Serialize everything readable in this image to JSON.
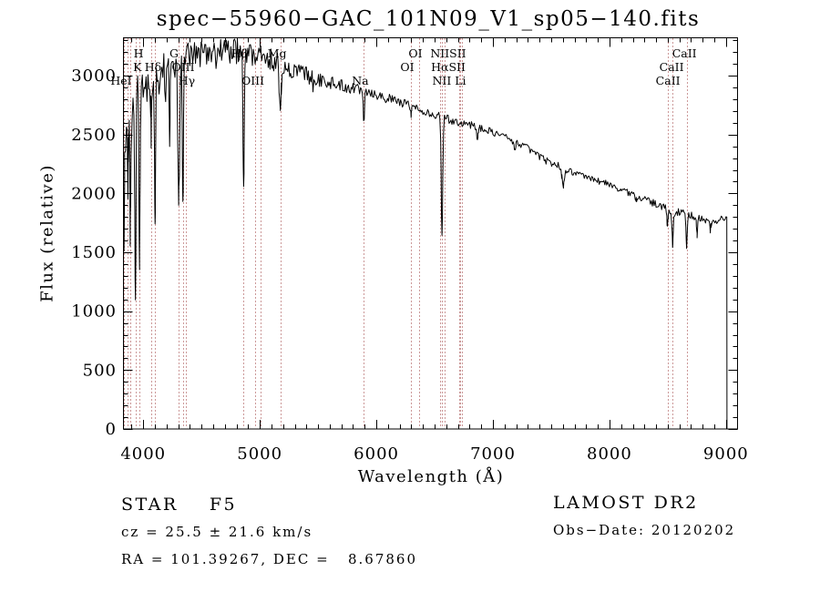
{
  "title": "spec−55960−GAC_101N09_V1_sp05−140.fits",
  "annotations": {
    "class_line": "STAR    F5",
    "cz_line": "cz = 25.5 ± 21.6 km/s",
    "radec_line": "RA = 101.39267, DEC =   8.67860",
    "survey": "LAMOST DR2",
    "obs_date": "Obs−Date: 20120202"
  },
  "colors": {
    "background": "#ffffff",
    "spectrum": "#000000",
    "axis": "#000000",
    "text": "#000000",
    "marker_line": "#993333"
  },
  "chart_data": {
    "type": "line",
    "title": "spec−55960−GAC_101N09_V1_sp05−140.fits",
    "xlabel": "Wavelength (Å)",
    "ylabel": "Flux (relative)",
    "xlim": [
      3830,
      9099
    ],
    "ylim": [
      0,
      3322
    ],
    "x_ticks": [
      4000,
      5000,
      6000,
      7000,
      8000,
      9000
    ],
    "x_minor_step": 100,
    "y_ticks": [
      0,
      500,
      1000,
      1500,
      2000,
      2500,
      3000
    ],
    "y_minor_step": 100,
    "grid": false,
    "legend": "none",
    "series_name": "spectrum",
    "noise_seed": 1234,
    "continuum_points": [
      [
        3830,
        2350
      ],
      [
        3860,
        2600
      ],
      [
        3900,
        2780
      ],
      [
        3950,
        2890
      ],
      [
        4000,
        2920
      ],
      [
        4100,
        3000
      ],
      [
        4200,
        3060
      ],
      [
        4300,
        3110
      ],
      [
        4450,
        3190
      ],
      [
        4600,
        3230
      ],
      [
        4750,
        3215
      ],
      [
        4900,
        3185
      ],
      [
        5000,
        3170
      ],
      [
        5100,
        3130
      ],
      [
        5250,
        3070
      ],
      [
        5400,
        3010
      ],
      [
        5550,
        2960
      ],
      [
        5700,
        2915
      ],
      [
        5900,
        2880
      ],
      [
        6100,
        2805
      ],
      [
        6300,
        2745
      ],
      [
        6450,
        2690
      ],
      [
        6550,
        2650
      ],
      [
        6650,
        2620
      ],
      [
        6800,
        2585
      ],
      [
        7000,
        2520
      ],
      [
        7150,
        2465
      ],
      [
        7300,
        2385
      ],
      [
        7450,
        2280
      ],
      [
        7600,
        2225
      ],
      [
        7750,
        2150
      ],
      [
        7900,
        2110
      ],
      [
        8050,
        2055
      ],
      [
        8200,
        1990
      ],
      [
        8350,
        1930
      ],
      [
        8450,
        1885
      ],
      [
        8550,
        1845
      ],
      [
        8650,
        1830
      ],
      [
        8750,
        1795
      ],
      [
        8850,
        1760
      ],
      [
        8950,
        1780
      ],
      [
        9000,
        1800
      ],
      [
        9005,
        1770
      ]
    ],
    "absorption_lines": [
      {
        "wavelength": 3835,
        "flux_min": 1650,
        "width": 4
      },
      {
        "wavelength": 3868,
        "flux_min": 1900,
        "width": 3
      },
      {
        "wavelength": 3889,
        "flux_min": 1680,
        "width": 4
      },
      {
        "wavelength": 3933,
        "flux_min": 1065,
        "width": 5
      },
      {
        "wavelength": 3968,
        "flux_min": 1430,
        "width": 5
      },
      {
        "wavelength": 4068,
        "flux_min": 2500,
        "width": 3
      },
      {
        "wavelength": 4101,
        "flux_min": 1700,
        "width": 4
      },
      {
        "wavelength": 4226,
        "flux_min": 2450,
        "width": 3
      },
      {
        "wavelength": 4305,
        "flux_min": 1990,
        "width": 8
      },
      {
        "wavelength": 4340,
        "flux_min": 1930,
        "width": 5
      },
      {
        "wavelength": 4861,
        "flux_min": 2005,
        "width": 5
      },
      {
        "wavelength": 5175,
        "flux_min": 2720,
        "width": 8
      },
      {
        "wavelength": 5893,
        "flux_min": 2620,
        "width": 5
      },
      {
        "wavelength": 6300,
        "flux_min": 2670,
        "width": 3
      },
      {
        "wavelength": 6563,
        "flux_min": 1650,
        "width": 6
      },
      {
        "wavelength": 6867,
        "flux_min": 2480,
        "width": 8
      },
      {
        "wavelength": 7186,
        "flux_min": 2380,
        "width": 9
      },
      {
        "wavelength": 7605,
        "flux_min": 2070,
        "width": 12
      },
      {
        "wavelength": 8227,
        "flux_min": 1940,
        "width": 5
      },
      {
        "wavelength": 8498,
        "flux_min": 1730,
        "width": 5
      },
      {
        "wavelength": 8542,
        "flux_min": 1565,
        "width": 5
      },
      {
        "wavelength": 8662,
        "flux_min": 1550,
        "width": 5
      },
      {
        "wavelength": 8752,
        "flux_min": 1650,
        "width": 5
      },
      {
        "wavelength": 8865,
        "flux_min": 1690,
        "width": 5
      }
    ],
    "noise_amplitude": [
      [
        3830,
        300
      ],
      [
        3880,
        260
      ],
      [
        3950,
        220
      ],
      [
        4050,
        160
      ],
      [
        4250,
        140
      ],
      [
        4500,
        120
      ],
      [
        4800,
        110
      ],
      [
        5100,
        95
      ],
      [
        5400,
        70
      ],
      [
        5700,
        55
      ],
      [
        6000,
        45
      ],
      [
        6400,
        38
      ],
      [
        6800,
        32
      ],
      [
        7200,
        28
      ],
      [
        7600,
        30
      ],
      [
        8000,
        28
      ],
      [
        8300,
        30
      ],
      [
        8600,
        33
      ],
      [
        8900,
        30
      ],
      [
        9005,
        28
      ]
    ],
    "marker_lines": [
      3835,
      3869,
      3889,
      3933,
      3968,
      4068,
      4101,
      4305,
      4340,
      4363,
      4861,
      4959,
      5007,
      5175,
      5893,
      6300,
      6363,
      6548,
      6563,
      6583,
      6707,
      6716,
      6731,
      8498,
      8542,
      8662
    ],
    "line_labels": [
      {
        "text": "H",
        "at": 3960,
        "row": 1
      },
      {
        "text": "K",
        "at": 3950,
        "row": 2
      },
      {
        "text": "HeI",
        "at": 3810,
        "row": 3
      },
      {
        "text": "Hδ",
        "at": 4084,
        "row": 2
      },
      {
        "text": "G",
        "at": 4264,
        "row": 1
      },
      {
        "text": "OIII",
        "at": 4342,
        "row": 2
      },
      {
        "text": "Hγ",
        "at": 4373,
        "row": 3
      },
      {
        "text": "Hβ",
        "at": 4827,
        "row": 1
      },
      {
        "text": "OIII",
        "at": 4940,
        "row": 3
      },
      {
        "text": "Mg",
        "at": 5148,
        "row": 1
      },
      {
        "text": "Na",
        "at": 5862,
        "row": 3
      },
      {
        "text": "OI",
        "at": 6335,
        "row": 1
      },
      {
        "text": "OI",
        "at": 6265,
        "row": 2
      },
      {
        "text": "NIISII",
        "at": 6617,
        "row": 1
      },
      {
        "text": "HαSII",
        "at": 6617,
        "row": 2
      },
      {
        "text": "NII Li",
        "at": 6625,
        "row": 3
      },
      {
        "text": "CaII",
        "at": 8643,
        "row": 1
      },
      {
        "text": "CaII",
        "at": 8533,
        "row": 2
      },
      {
        "text": "CaII",
        "at": 8502,
        "row": 3
      }
    ],
    "end_drop": {
      "wavelength": 9008,
      "flux_top": 1800
    }
  }
}
